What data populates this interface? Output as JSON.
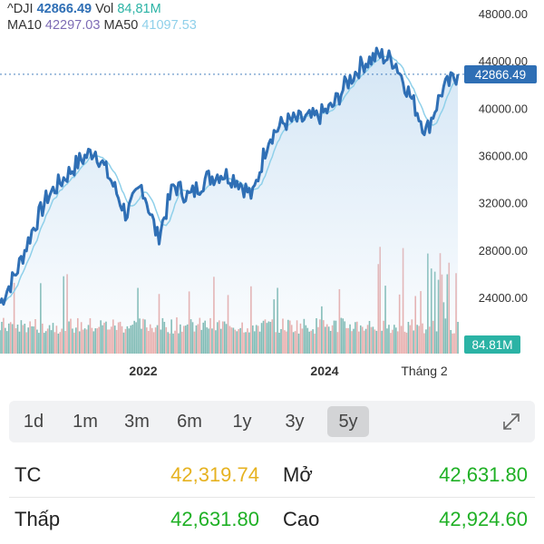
{
  "legend": {
    "symbol": "^DJI",
    "price": "42866.49",
    "vol_label": "Vol",
    "vol_value": "84,81M",
    "ma10_label": "MA10",
    "ma10_value": "42297.03",
    "ma50_label": "MA50",
    "ma50_value": "41097.53"
  },
  "colors": {
    "price_line": "#2f6fb5",
    "area_fill": "#cfe3f4",
    "ma_line": "#8fd0ea",
    "vol_up": "#5fa9a0",
    "vol_down": "#e59a96",
    "axis_text": "#333333",
    "badge": "#2f6fb5"
  },
  "price_badge": "42866.49",
  "volume_badge": "84.81M",
  "x_axis_labels": [
    "2022",
    "2024",
    "Tháng 2"
  ],
  "y_axis_labels": [
    "48000.00",
    "44000.00",
    "40000.00",
    "36000.00",
    "32000.00",
    "28000.00",
    "24000.00"
  ],
  "timeframes": [
    "1d",
    "1m",
    "3m",
    "6m",
    "1y",
    "3y",
    "5y"
  ],
  "active_timeframe": "5y",
  "stats": [
    {
      "label": "TC",
      "value": "42,319.74",
      "color": "#e6b220"
    },
    {
      "label": "Mở",
      "value": "42,631.80",
      "color": "#1fb025"
    },
    {
      "label": "Thấp",
      "value": "42,631.80",
      "color": "#1fb025"
    },
    {
      "label": "Cao",
      "value": "42,924.60",
      "color": "#1fb025"
    }
  ],
  "chart_data": {
    "type": "line",
    "x": [
      "2021-03",
      "2021-04",
      "2021-06",
      "2021-08",
      "2021-10",
      "2021-12",
      "2022-02",
      "2022-04",
      "2022-06",
      "2022-08",
      "2022-10",
      "2022-12",
      "2023-02",
      "2023-04",
      "2023-06",
      "2023-08",
      "2023-10",
      "2023-12",
      "2024-02",
      "2024-04",
      "2024-06",
      "2024-08",
      "2024-10",
      "2024-12",
      "2025-01",
      "2025-02",
      "2025-03",
      "2025-04",
      "2025-05",
      "2025-06"
    ],
    "series": [
      {
        "values": [
          23500,
          26000,
          29500,
          32500,
          34000,
          35500,
          36500,
          34000,
          31000,
          33500,
          29000,
          33500,
          32500,
          34000,
          34500,
          34000,
          32500,
          37500,
          38800,
          39000,
          39200,
          40000,
          42200,
          43800,
          44500,
          44000,
          41000,
          38000,
          41500,
          42866.49
        ]
      }
    ],
    "y_ticks": [
      48000,
      44000,
      40000,
      36000,
      32000,
      28000,
      24000
    ],
    "ylim": [
      21500,
      49000
    ],
    "last_price": 42866.49,
    "last_volume": "84.81M",
    "grid": false
  }
}
